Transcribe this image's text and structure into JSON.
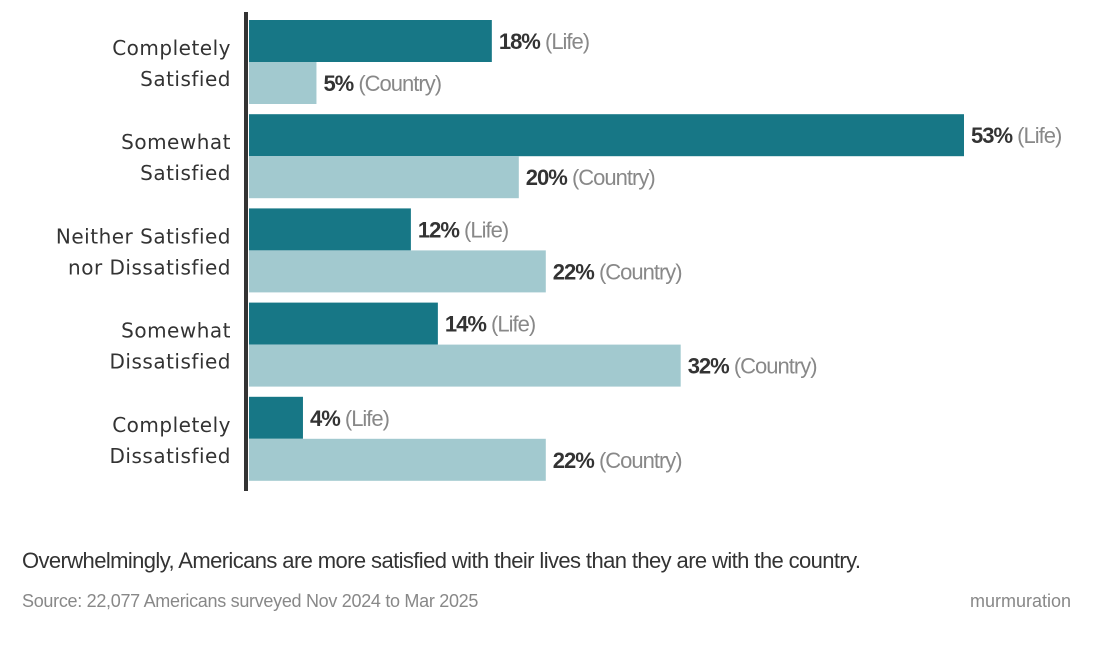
{
  "chart_data": {
    "type": "bar",
    "orientation": "horizontal",
    "categories": [
      [
        "Completely",
        "Satisfied"
      ],
      [
        "Somewhat",
        "Satisfied"
      ],
      [
        "Neither Satisfied",
        "nor Dissatisfied"
      ],
      [
        "Somewhat",
        "Dissatisfied"
      ],
      [
        "Completely",
        "Dissatisfied"
      ]
    ],
    "series": [
      {
        "name": "Life",
        "label_suffix": "(Life)",
        "color": "#177786",
        "values": [
          18,
          53,
          12,
          14,
          4
        ]
      },
      {
        "name": "Country",
        "label_suffix": "(Country)",
        "color": "#A2C9CF",
        "values": [
          5,
          20,
          22,
          32,
          22
        ]
      }
    ],
    "value_format": "%",
    "xlim": [
      0,
      53
    ],
    "grid": false,
    "legend": "none"
  },
  "caption": "Overwhelmingly, Americans are more satisfied with their lives than they are with the country.",
  "source": "Source: 22,077 Americans surveyed Nov 2024 to Mar 2025",
  "brand": "murmuration"
}
